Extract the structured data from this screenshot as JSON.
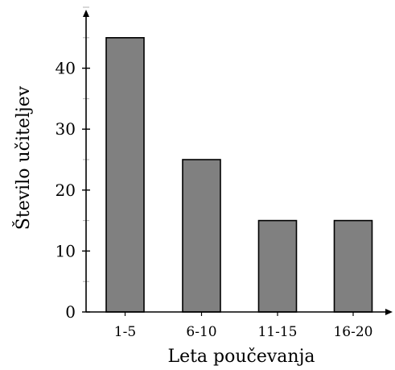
{
  "chart_data": {
    "type": "bar",
    "categories": [
      "1-5",
      "6-10",
      "11-15",
      "16-20"
    ],
    "values": [
      45,
      25,
      15,
      15
    ],
    "xlabel": "Leta poučevanja",
    "ylabel": "Število učiteljev",
    "ylim": [
      0,
      50
    ],
    "yticks": [
      0,
      10,
      20,
      30,
      40
    ],
    "grid": false,
    "legend": "none",
    "colors": {
      "bar_fill": "#808080",
      "bar_stroke": "#000000",
      "axis": "#000000"
    }
  }
}
